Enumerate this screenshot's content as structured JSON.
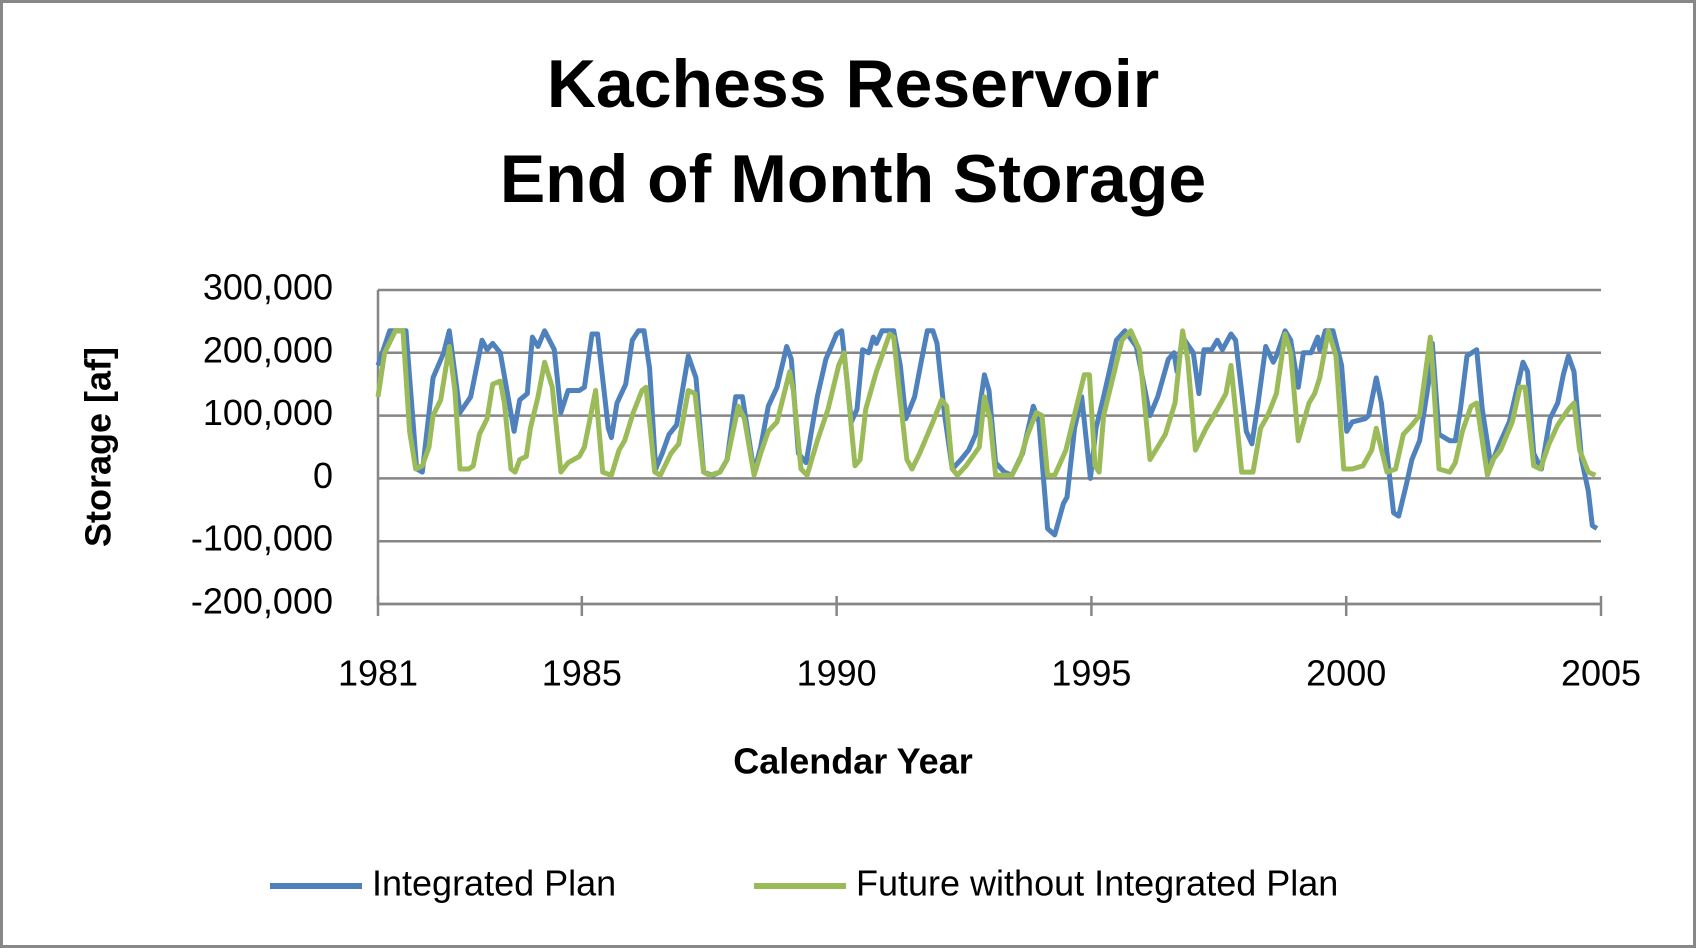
{
  "chart_data": {
    "type": "line",
    "title": [
      "Kachess Reservoir",
      "End of Month Storage"
    ],
    "xlabel": "Calendar Year",
    "ylabel": "Storage [af]",
    "xlim": [
      1981,
      2005
    ],
    "xticks": [
      1981,
      1985,
      1990,
      1995,
      2000,
      2005
    ],
    "ylim": [
      -200000,
      300000
    ],
    "yticks": [
      {
        "value": -200000,
        "label": "-200,000"
      },
      {
        "value": -100000,
        "label": "-100,000"
      },
      0,
      {
        "value": 100000,
        "label": "100,000"
      },
      {
        "value": 200000,
        "label": "200,000"
      },
      {
        "value": 300000,
        "label": "300,000"
      }
    ],
    "grid": true,
    "legend": "bottom",
    "series": [
      {
        "name": "Integrated Plan",
        "color": "#4f81bd",
        "x": [
          1981.0,
          1981.23,
          1981.55,
          1981.76,
          1981.87,
          1982.08,
          1982.29,
          1982.4,
          1982.61,
          1982.82,
          1983.04,
          1983.14,
          1983.25,
          1983.4,
          1983.67,
          1983.78,
          1983.93,
          1984.03,
          1984.14,
          1984.27,
          1984.46,
          1984.59,
          1984.73,
          1984.95,
          1985.05,
          1985.2,
          1985.31,
          1985.52,
          1985.58,
          1985.69,
          1985.86,
          1985.99,
          1986.11,
          1986.22,
          1986.33,
          1986.45,
          1986.58,
          1986.71,
          1986.86,
          1987.09,
          1987.24,
          1987.39,
          1987.56,
          1987.71,
          1987.85,
          1988.02,
          1988.15,
          1988.38,
          1988.51,
          1988.66,
          1988.83,
          1989.02,
          1989.11,
          1989.25,
          1989.4,
          1989.62,
          1989.79,
          1990.0,
          1990.1,
          1990.29,
          1990.4,
          1990.51,
          1990.63,
          1990.72,
          1990.78,
          1990.89,
          1991.12,
          1991.25,
          1991.36,
          1991.53,
          1991.67,
          1991.78,
          1991.89,
          1991.97,
          1992.12,
          1992.27,
          1992.44,
          1992.59,
          1992.73,
          1992.9,
          1992.99,
          1993.12,
          1993.29,
          1993.44,
          1993.65,
          1993.86,
          1993.97,
          1994.14,
          1994.28,
          1994.45,
          1994.52,
          1994.67,
          1994.81,
          1994.98,
          1995.09,
          1995.24,
          1995.49,
          1995.66,
          1995.88,
          1996.15,
          1996.3,
          1996.51,
          1996.62,
          1996.68,
          1996.79,
          1997.0,
          1997.11,
          1997.21,
          1997.36,
          1997.47,
          1997.57,
          1997.74,
          1997.83,
          1998.04,
          1998.15,
          1998.27,
          1998.42,
          1998.57,
          1998.63,
          1998.8,
          1998.91,
          1999.06,
          1999.16,
          1999.31,
          1999.44,
          1999.48,
          1999.59,
          1999.74,
          1999.91,
          2000.01,
          2000.12,
          2000.37,
          2000.44,
          2000.59,
          2000.69,
          2000.93,
          2001.03,
          2001.18,
          2001.29,
          2001.44,
          2001.65,
          2001.69,
          2001.82,
          2002.03,
          2002.14,
          2002.24,
          2002.37,
          2002.56,
          2002.67,
          2002.84,
          2002.98,
          2003.2,
          2003.47,
          2003.56,
          2003.68,
          2003.83,
          2004.0,
          2004.15,
          2004.26,
          2004.36,
          2004.47,
          2004.62,
          2004.75,
          2004.83,
          2004.92
        ],
        "values": [
          180000,
          235000,
          235000,
          15000,
          10000,
          160000,
          200000,
          235000,
          105000,
          130000,
          220000,
          205000,
          215000,
          200000,
          75000,
          125000,
          135000,
          225000,
          210000,
          235000,
          205000,
          105000,
          140000,
          140000,
          145000,
          230000,
          230000,
          80000,
          65000,
          120000,
          150000,
          220000,
          235000,
          235000,
          175000,
          15000,
          40000,
          70000,
          85000,
          195000,
          160000,
          10000,
          5000,
          10000,
          30000,
          130000,
          130000,
          10000,
          50000,
          115000,
          145000,
          210000,
          190000,
          40000,
          25000,
          130000,
          190000,
          230000,
          235000,
          90000,
          110000,
          205000,
          200000,
          225000,
          215000,
          235000,
          235000,
          180000,
          95000,
          130000,
          190000,
          235000,
          235000,
          215000,
          100000,
          15000,
          30000,
          45000,
          70000,
          165000,
          140000,
          25000,
          10000,
          5000,
          40000,
          115000,
          90000,
          -80000,
          -90000,
          -40000,
          -30000,
          80000,
          130000,
          0,
          80000,
          130000,
          220000,
          235000,
          210000,
          100000,
          130000,
          190000,
          200000,
          170000,
          225000,
          200000,
          135000,
          205000,
          205000,
          220000,
          205000,
          230000,
          220000,
          75000,
          55000,
          120000,
          210000,
          185000,
          195000,
          235000,
          220000,
          145000,
          200000,
          200000,
          225000,
          205000,
          235000,
          235000,
          180000,
          75000,
          90000,
          95000,
          100000,
          160000,
          120000,
          -55000,
          -60000,
          -10000,
          30000,
          60000,
          170000,
          215000,
          70000,
          60000,
          60000,
          110000,
          195000,
          205000,
          110000,
          20000,
          50000,
          90000,
          185000,
          170000,
          40000,
          15000,
          95000,
          120000,
          165000,
          195000,
          170000,
          30000,
          -20000,
          -75000,
          -80000
        ]
      },
      {
        "name": "Future without Integrated Plan",
        "color": "#9bbb59",
        "x": [
          1981.0,
          1981.13,
          1981.28,
          1981.34,
          1981.49,
          1981.62,
          1981.74,
          1981.87,
          1982.0,
          1982.08,
          1982.23,
          1982.4,
          1982.51,
          1982.61,
          1982.78,
          1982.87,
          1982.99,
          1983.14,
          1983.25,
          1983.4,
          1983.48,
          1983.61,
          1983.69,
          1983.78,
          1983.91,
          1983.99,
          1984.14,
          1984.27,
          1984.42,
          1984.59,
          1984.73,
          1984.95,
          1985.05,
          1985.27,
          1985.41,
          1985.58,
          1985.73,
          1985.84,
          1986.01,
          1986.18,
          1986.26,
          1986.43,
          1986.54,
          1986.75,
          1986.9,
          1987.09,
          1987.22,
          1987.39,
          1987.51,
          1987.71,
          1987.85,
          1988.07,
          1988.19,
          1988.38,
          1988.51,
          1988.66,
          1988.83,
          1989.08,
          1989.15,
          1989.3,
          1989.42,
          1989.62,
          1989.83,
          1990.04,
          1990.15,
          1990.36,
          1990.46,
          1990.57,
          1990.78,
          1990.89,
          1991.04,
          1991.12,
          1991.21,
          1991.38,
          1991.48,
          1991.63,
          1991.89,
          1992.06,
          1992.16,
          1992.27,
          1992.37,
          1992.54,
          1992.8,
          1992.9,
          1993.01,
          1993.12,
          1993.29,
          1993.44,
          1993.6,
          1993.75,
          1993.92,
          1994.03,
          1994.14,
          1994.28,
          1994.5,
          1994.71,
          1994.86,
          1994.96,
          1995.07,
          1995.15,
          1995.24,
          1995.39,
          1995.6,
          1995.77,
          1995.94,
          1996.15,
          1996.3,
          1996.45,
          1996.64,
          1996.79,
          1996.89,
          1997.04,
          1997.25,
          1997.47,
          1997.64,
          1997.74,
          1997.95,
          1998.17,
          1998.32,
          1998.46,
          1998.63,
          1998.8,
          1998.91,
          1999.06,
          1999.27,
          1999.38,
          1999.48,
          1999.65,
          1999.8,
          1999.95,
          2000.12,
          2000.33,
          2000.5,
          2000.59,
          2000.8,
          2000.97,
          2001.12,
          2001.29,
          2001.44,
          2001.65,
          2001.71,
          2001.82,
          2002.03,
          2002.14,
          2002.28,
          2002.45,
          2002.56,
          2002.77,
          2002.88,
          2003.03,
          2003.26,
          2003.41,
          2003.51,
          2003.68,
          2003.81,
          2003.98,
          2004.15,
          2004.36,
          2004.47,
          2004.58,
          2004.75,
          2004.89
        ],
        "values": [
          130000,
          200000,
          225000,
          235000,
          235000,
          75000,
          15000,
          20000,
          50000,
          100000,
          125000,
          210000,
          140000,
          15000,
          15000,
          20000,
          70000,
          95000,
          150000,
          155000,
          120000,
          15000,
          10000,
          30000,
          35000,
          80000,
          130000,
          185000,
          145000,
          10000,
          25000,
          35000,
          50000,
          140000,
          10000,
          5000,
          45000,
          60000,
          105000,
          140000,
          145000,
          10000,
          5000,
          40000,
          55000,
          140000,
          135000,
          10000,
          5000,
          10000,
          30000,
          115000,
          95000,
          5000,
          40000,
          75000,
          90000,
          170000,
          140000,
          15000,
          5000,
          60000,
          110000,
          180000,
          200000,
          20000,
          30000,
          110000,
          170000,
          195000,
          230000,
          225000,
          155000,
          30000,
          15000,
          40000,
          90000,
          125000,
          115000,
          15000,
          5000,
          20000,
          50000,
          130000,
          95000,
          5000,
          5000,
          5000,
          30000,
          70000,
          105000,
          100000,
          5000,
          5000,
          45000,
          115000,
          165000,
          165000,
          20000,
          10000,
          100000,
          150000,
          220000,
          235000,
          205000,
          30000,
          50000,
          70000,
          120000,
          235000,
          190000,
          45000,
          80000,
          110000,
          135000,
          180000,
          10000,
          10000,
          80000,
          100000,
          135000,
          230000,
          200000,
          60000,
          120000,
          135000,
          160000,
          235000,
          195000,
          15000,
          15000,
          20000,
          45000,
          80000,
          10000,
          15000,
          70000,
          85000,
          100000,
          225000,
          160000,
          15000,
          10000,
          25000,
          75000,
          115000,
          120000,
          5000,
          30000,
          45000,
          90000,
          145000,
          145000,
          20000,
          15000,
          55000,
          85000,
          110000,
          120000,
          45000,
          10000,
          5000
        ]
      }
    ]
  }
}
